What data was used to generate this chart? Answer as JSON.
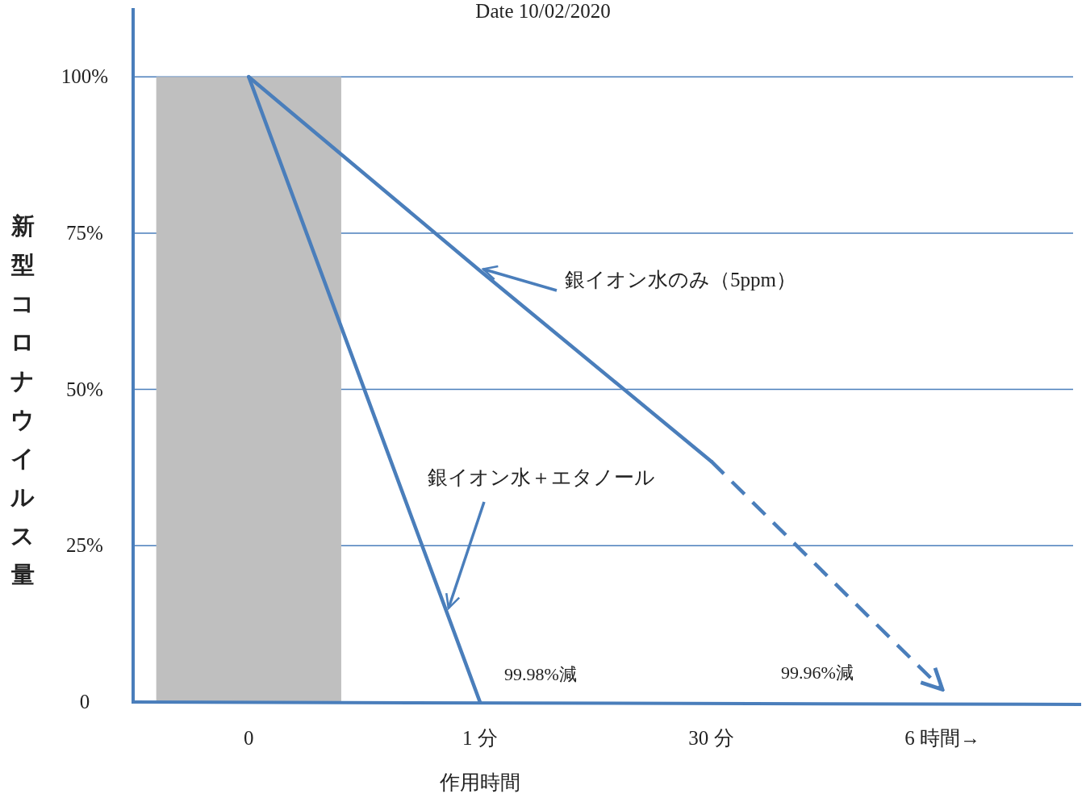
{
  "chart_data": {
    "type": "line",
    "title": "Date 10/02/2020",
    "xlabel": "作用時間",
    "ylabel": "新型コロナウイルス量",
    "categories": [
      "0",
      "1 分",
      "30 分",
      "6 時間→"
    ],
    "ylim": [
      0,
      111
    ],
    "yticks": [
      0,
      {
        "value": 25,
        "label": "25%"
      },
      {
        "value": 50,
        "label": "50%"
      },
      {
        "value": 75,
        "label": "75%"
      },
      {
        "value": 100,
        "label": "100%"
      }
    ],
    "grid": "y",
    "series": [
      {
        "type": "bar",
        "color": "#bfbfbf",
        "values": [
          100,
          null,
          null,
          null
        ]
      },
      {
        "name": "銀イオン水＋エタノール",
        "color": "#4a7ebb",
        "values": [
          100,
          0,
          null,
          null
        ],
        "line_style": "solid"
      },
      {
        "name": "銀イオン水のみ（5ppm）",
        "color": "#4a7ebb",
        "values": [
          100,
          69,
          38.5,
          null
        ],
        "line_style": "solid"
      },
      {
        "color": "#4a7ebb",
        "values": [
          null,
          null,
          38.5,
          2
        ],
        "line_style": "dashed"
      }
    ],
    "annotations": [
      "99.98%減",
      "99.96%減"
    ]
  }
}
